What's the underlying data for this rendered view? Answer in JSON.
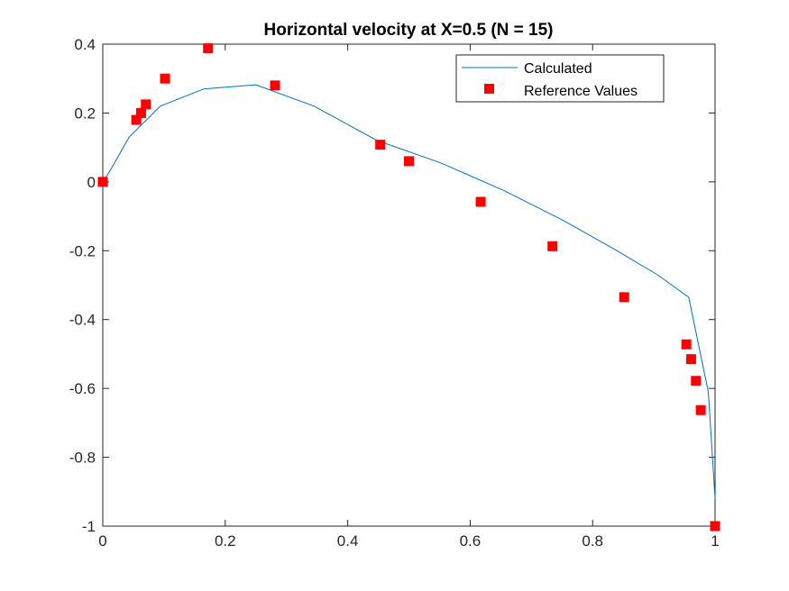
{
  "chart_data": {
    "type": "line",
    "title": "Horizontal velocity at X=0.5 (N = 15)",
    "xlabel": "",
    "ylabel": "",
    "xlim": [
      0,
      1
    ],
    "ylim": [
      -1,
      0.4
    ],
    "x_ticks": [
      0,
      0.2,
      0.4,
      0.6,
      0.8,
      1
    ],
    "x_tick_labels": [
      "0",
      "0.2",
      "0.4",
      "0.6",
      "0.8",
      "1"
    ],
    "y_ticks": [
      0.4,
      0.2,
      0,
      -0.2,
      -0.4,
      -0.6,
      -0.8,
      -1
    ],
    "y_tick_labels": [
      "0.4",
      "0.2",
      "0",
      "-0.2",
      "-0.4",
      "-0.6",
      "-0.8",
      "-1"
    ],
    "grid": false,
    "legend_position": "top-right",
    "series": [
      {
        "name": "Calculated",
        "kind": "line",
        "color": "#0072BD",
        "x": [
          0.0,
          0.011,
          0.043,
          0.094,
          0.165,
          0.25,
          0.345,
          0.448,
          0.552,
          0.655,
          0.75,
          0.835,
          0.906,
          0.957,
          0.989,
          1.0
        ],
        "y": [
          0.0,
          0.03,
          0.13,
          0.22,
          0.27,
          0.282,
          0.22,
          0.12,
          0.055,
          -0.025,
          -0.11,
          -0.195,
          -0.27,
          -0.335,
          -0.61,
          -0.92
        ]
      },
      {
        "name": "Reference Values",
        "kind": "scatter",
        "marker": "square",
        "color": "#FF0000",
        "x": [
          0.0,
          0.0547,
          0.0625,
          0.0703,
          0.1016,
          0.1719,
          0.2813,
          0.4531,
          0.5,
          0.6172,
          0.7344,
          0.8516,
          0.9531,
          0.9609,
          0.9688,
          0.9766,
          1.0
        ],
        "y": [
          0.0,
          0.18,
          0.2,
          0.225,
          0.3,
          0.388,
          0.28,
          0.108,
          0.06,
          -0.058,
          -0.187,
          -0.335,
          -0.472,
          -0.515,
          -0.578,
          -0.663,
          -1.0
        ]
      }
    ]
  }
}
